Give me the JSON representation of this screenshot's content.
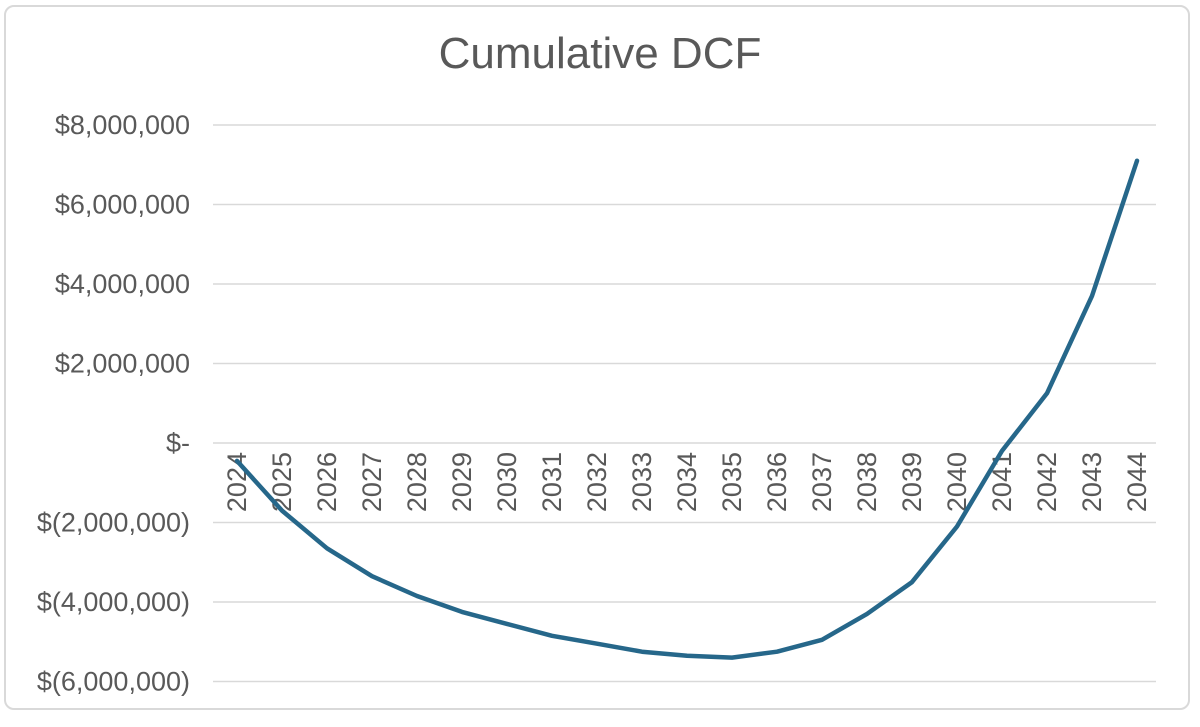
{
  "chart_data": {
    "type": "line",
    "title": "Cumulative DCF",
    "categories": [
      "2024",
      "2025",
      "2026",
      "2027",
      "2028",
      "2029",
      "2030",
      "2031",
      "2032",
      "2033",
      "2034",
      "2035",
      "2036",
      "2037",
      "2038",
      "2039",
      "2040",
      "2041",
      "2042",
      "2043",
      "2044"
    ],
    "series": [
      {
        "name": "Cumulative DCF",
        "color": "#26678a",
        "stroke_width": 4.5,
        "values": [
          -450000,
          -1700000,
          -2650000,
          -3350000,
          -3850000,
          -4250000,
          -4550000,
          -4850000,
          -5050000,
          -5250000,
          -5350000,
          -5400000,
          -5250000,
          -4950000,
          -4300000,
          -3500000,
          -2100000,
          -200000,
          1250000,
          3700000,
          7100000
        ]
      }
    ],
    "y_axis": {
      "min": -6000000,
      "max": 8000000,
      "tick_step": 2000000,
      "number_format": "accounting",
      "ticks": [
        {
          "value": 8000000,
          "label": "$8,000,000"
        },
        {
          "value": 6000000,
          "label": "$6,000,000"
        },
        {
          "value": 4000000,
          "label": "$4,000,000"
        },
        {
          "value": 2000000,
          "label": "$2,000,000"
        },
        {
          "value": 0,
          "label": "$-"
        },
        {
          "value": -2000000,
          "label": "$(2,000,000)"
        },
        {
          "value": -4000000,
          "label": "$(4,000,000)"
        },
        {
          "value": -6000000,
          "label": "$(6,000,000)"
        }
      ]
    },
    "x_axis": {
      "label_rotation": -90,
      "labels_position": "below-zero-line"
    },
    "legend": "none",
    "grid": "horizontal",
    "colors": {
      "text": "#595959",
      "gridline": "#d9d9d9",
      "frame_border": "#d9d9d9",
      "background": "#ffffff"
    }
  }
}
